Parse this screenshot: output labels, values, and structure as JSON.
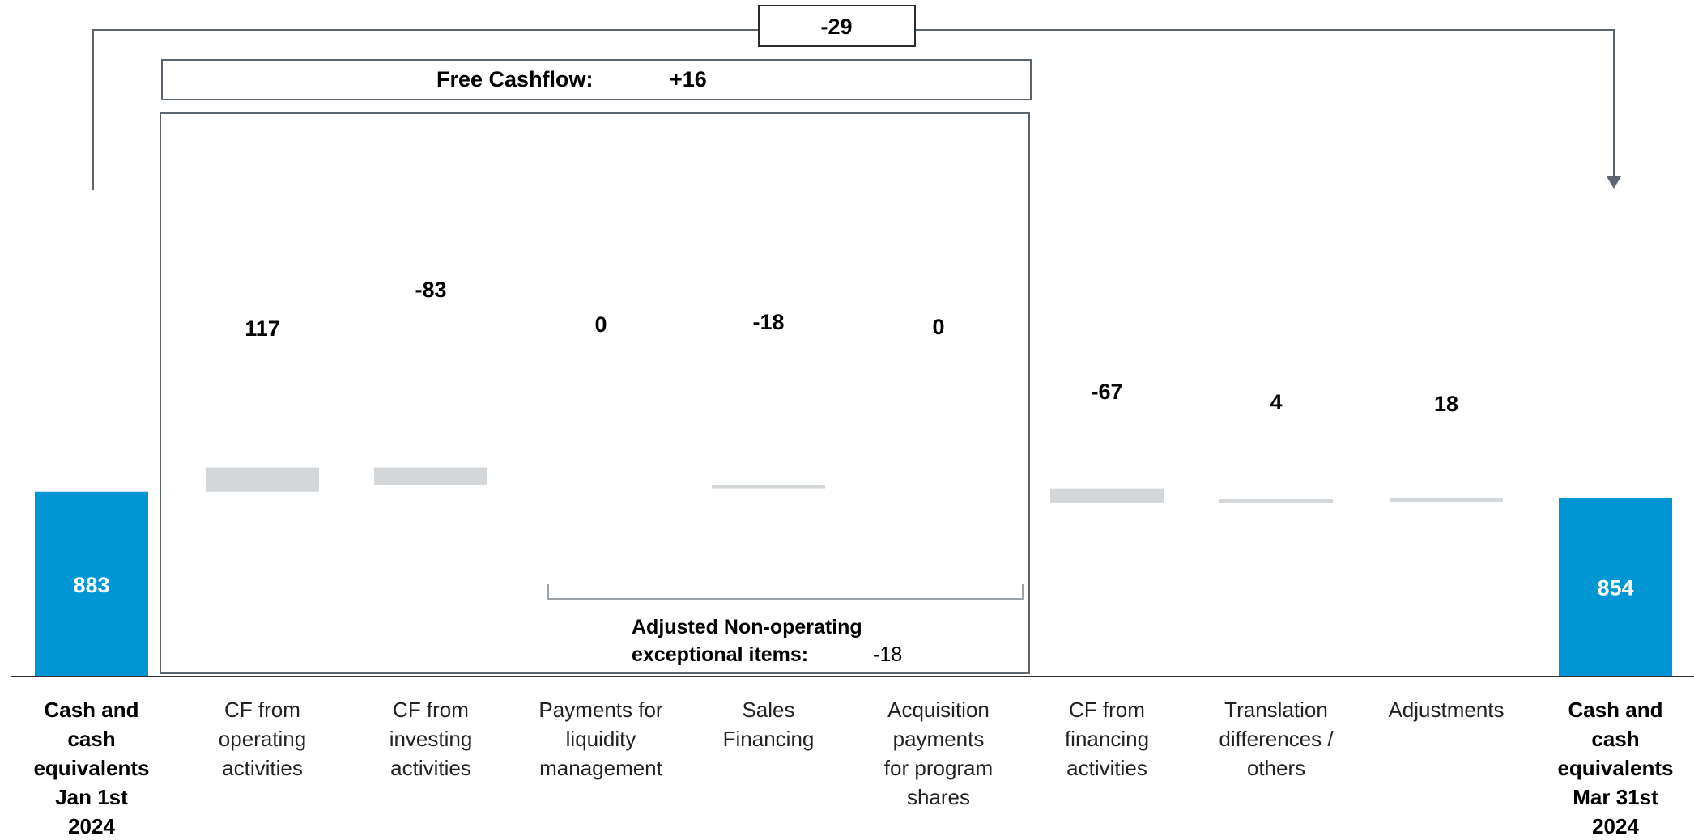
{
  "chart_data": {
    "type": "waterfall",
    "unit": "",
    "categories": [
      {
        "label": [
          "Cash and",
          "cash",
          "equivalents",
          "Jan 1st",
          "2024"
        ],
        "value": 883,
        "kind": "total",
        "value_label": "883"
      },
      {
        "label": [
          "CF from",
          "operating",
          "activities"
        ],
        "value": 117,
        "kind": "delta",
        "value_label": "117"
      },
      {
        "label": [
          "CF from",
          "investing",
          "activities"
        ],
        "value": -83,
        "kind": "delta",
        "value_label": "-83"
      },
      {
        "label": [
          "Payments for",
          "liquidity",
          "management"
        ],
        "value": 0,
        "kind": "delta",
        "value_label": "0"
      },
      {
        "label": [
          "Sales",
          "Financing"
        ],
        "value": -18,
        "kind": "delta",
        "value_label": "-18"
      },
      {
        "label": [
          "Acquisition",
          "payments",
          "for program",
          "shares"
        ],
        "value": 0,
        "kind": "delta",
        "value_label": "0"
      },
      {
        "label": [
          "CF from",
          "financing",
          "activities"
        ],
        "value": -67,
        "kind": "delta",
        "value_label": "-67"
      },
      {
        "label": [
          "Translation",
          "differences /",
          "others"
        ],
        "value": 4,
        "kind": "delta",
        "value_label": "4"
      },
      {
        "label": [
          "Adjustments"
        ],
        "value": 18,
        "kind": "delta",
        "value_label": "18"
      },
      {
        "label": [
          "Cash and",
          "cash",
          "equivalents",
          "Mar 31st",
          "2024"
        ],
        "value": 854,
        "kind": "total",
        "value_label": "854"
      }
    ],
    "total_change": {
      "label": "-29",
      "value": -29
    },
    "free_cashflow": {
      "title": "Free Cashflow:",
      "value_label": "+16"
    },
    "non_operating": {
      "title": [
        "Adjusted Non-operating",
        "exceptional items:"
      ],
      "value_label": "-18"
    },
    "colors": {
      "total": "#0096D3",
      "delta": "#D4D7DA",
      "lines": "#5B6670",
      "axis": "#333333"
    }
  }
}
